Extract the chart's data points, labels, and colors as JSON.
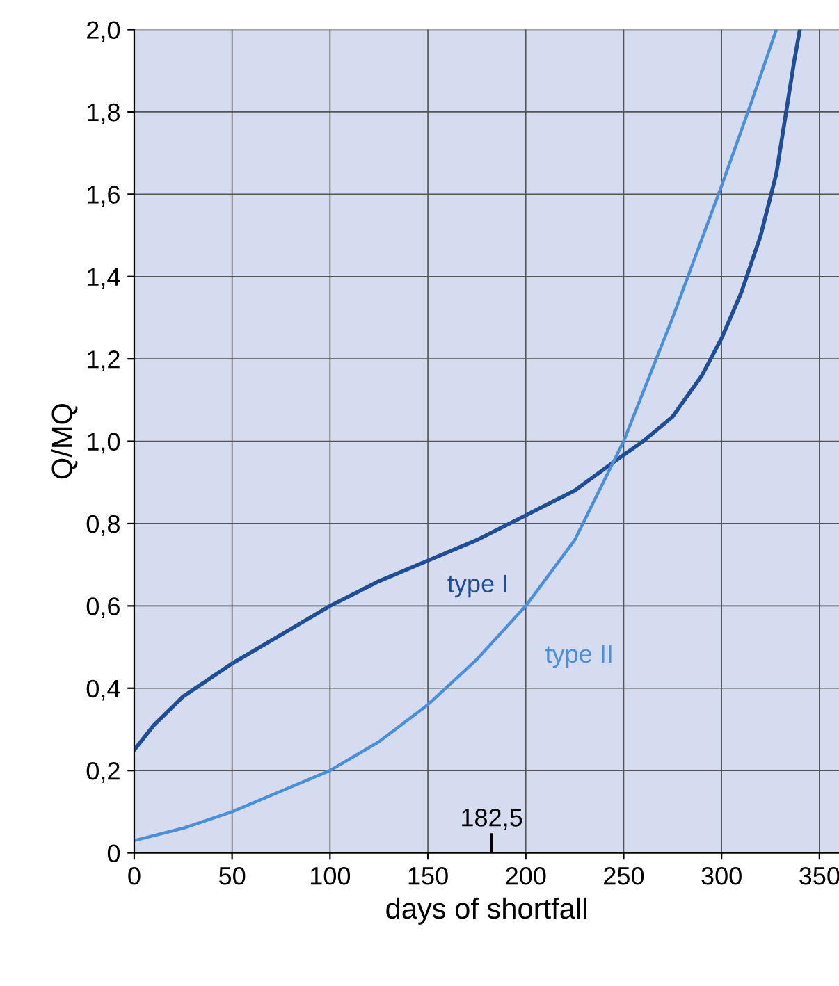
{
  "chart_data": {
    "type": "line",
    "xlabel": "days of shortfall",
    "ylabel": "Q/MQ",
    "xlim": [
      0,
      360
    ],
    "xticks": [
      0,
      50,
      100,
      150,
      200,
      250,
      300,
      350
    ],
    "ylim": [
      0,
      2.0
    ],
    "yticks": [
      0,
      {
        "value": 0.2,
        "label": "0,2"
      },
      {
        "value": 0.4,
        "label": "0,4"
      },
      {
        "value": 0.6,
        "label": "0,6"
      },
      {
        "value": 0.8,
        "label": "0,8"
      },
      {
        "value": 1.0,
        "label": "1,0"
      },
      {
        "value": 1.2,
        "label": "1,2"
      },
      {
        "value": 1.4,
        "label": "1,4"
      },
      {
        "value": 1.6,
        "label": "1,6"
      },
      {
        "value": 1.8,
        "label": "1,8"
      },
      {
        "value": 2.0,
        "label": "2,0"
      }
    ],
    "grid": true,
    "marker": "none",
    "line_style": "solid",
    "legend": false,
    "series": [
      {
        "name": "type I",
        "color": "#1f4e96",
        "x": [
          0,
          10,
          25,
          50,
          75,
          100,
          125,
          150,
          175,
          200,
          225,
          245,
          260,
          275,
          290,
          300,
          310,
          320,
          328,
          333,
          337,
          340
        ],
        "values": [
          0.25,
          0.31,
          0.38,
          0.46,
          0.53,
          0.6,
          0.66,
          0.71,
          0.76,
          0.82,
          0.88,
          0.95,
          1.0,
          1.06,
          1.16,
          1.25,
          1.36,
          1.5,
          1.65,
          1.8,
          1.92,
          2.0
        ]
      },
      {
        "name": "type II",
        "color": "#4a8fd8",
        "x": [
          0,
          25,
          50,
          75,
          100,
          125,
          150,
          175,
          200,
          225,
          250,
          275,
          300,
          315,
          328
        ],
        "values": [
          0.03,
          0.06,
          0.1,
          0.15,
          0.2,
          0.27,
          0.36,
          0.47,
          0.6,
          0.76,
          1.0,
          1.3,
          1.62,
          1.82,
          2.0
        ]
      }
    ],
    "annotations": [
      "182,5"
    ]
  }
}
